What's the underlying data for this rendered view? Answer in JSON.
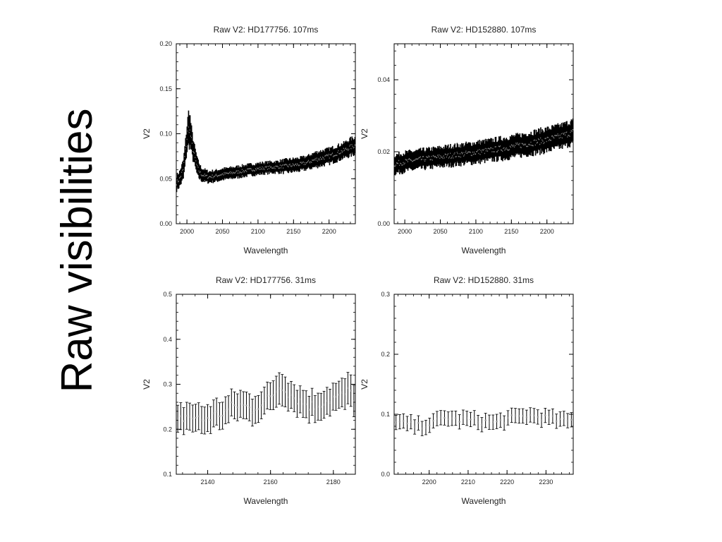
{
  "slide_title": "Raw visibilities",
  "chart_data": [
    {
      "type": "scatter",
      "title": "Raw V2: HD177756. 107ms",
      "xlabel": "Wavelength",
      "ylabel": "V2",
      "xlim": [
        1985,
        2237
      ],
      "ylim": [
        0.0,
        0.2
      ],
      "xticks": [
        2000,
        2050,
        2100,
        2150,
        2200
      ],
      "xtick_labels": [
        "2000",
        "2050",
        "2100",
        "2150",
        "2200"
      ],
      "yticks": [
        0.0,
        0.05,
        0.1,
        0.15,
        0.2
      ],
      "ytick_labels": [
        "0.00",
        "0.05",
        "0.10",
        "0.15",
        "0.20"
      ],
      "error_bars": true,
      "grid": false,
      "series": [
        {
          "x": [
            1985,
            1990,
            1995,
            1998,
            2001,
            2003,
            2005,
            2008,
            2011,
            2015,
            2020,
            2030,
            2040,
            2050,
            2060,
            2075,
            2090,
            2100,
            2110,
            2125,
            2140,
            2150,
            2160,
            2170,
            2180,
            2190,
            2200,
            2210,
            2220,
            2230,
            2237
          ],
          "y": [
            0.045,
            0.05,
            0.06,
            0.08,
            0.1,
            0.108,
            0.1,
            0.085,
            0.075,
            0.062,
            0.055,
            0.052,
            0.053,
            0.055,
            0.056,
            0.058,
            0.06,
            0.061,
            0.062,
            0.063,
            0.064,
            0.065,
            0.066,
            0.068,
            0.071,
            0.073,
            0.075,
            0.078,
            0.081,
            0.085,
            0.087
          ],
          "err": [
            0.008,
            0.008,
            0.01,
            0.012,
            0.015,
            0.02,
            0.015,
            0.012,
            0.01,
            0.009,
            0.007,
            0.006,
            0.006,
            0.006,
            0.006,
            0.006,
            0.006,
            0.006,
            0.006,
            0.006,
            0.007,
            0.007,
            0.007,
            0.007,
            0.008,
            0.008,
            0.008,
            0.008,
            0.008,
            0.009,
            0.009
          ]
        }
      ]
    },
    {
      "type": "scatter",
      "title": "Raw V2: HD152880. 107ms",
      "xlabel": "Wavelength",
      "ylabel": "V2",
      "xlim": [
        1985,
        2237
      ],
      "ylim": [
        0.0,
        0.05
      ],
      "xticks": [
        2000,
        2050,
        2100,
        2150,
        2200
      ],
      "xtick_labels": [
        "2000",
        "2050",
        "2100",
        "2150",
        "2200"
      ],
      "yticks": [
        0.0,
        0.02,
        0.04
      ],
      "ytick_labels": [
        "0.00",
        "0.02",
        "0.04"
      ],
      "error_bars": true,
      "grid": false,
      "series": [
        {
          "x": [
            1985,
            2000,
            2020,
            2040,
            2060,
            2080,
            2100,
            2120,
            2140,
            2160,
            2180,
            2200,
            2220,
            2237
          ],
          "y": [
            0.0165,
            0.0172,
            0.0178,
            0.0183,
            0.0188,
            0.0193,
            0.0198,
            0.0204,
            0.021,
            0.0217,
            0.0225,
            0.0233,
            0.0243,
            0.0255
          ],
          "err": [
            0.0025,
            0.0025,
            0.0025,
            0.0025,
            0.0026,
            0.0026,
            0.0027,
            0.0027,
            0.0028,
            0.0028,
            0.0029,
            0.003,
            0.003,
            0.0031
          ]
        }
      ]
    },
    {
      "type": "scatter",
      "title": "Raw V2: HD177756. 31ms",
      "xlabel": "Wavelength",
      "ylabel": "V2",
      "xlim": [
        2130,
        2187
      ],
      "ylim": [
        0.1,
        0.5
      ],
      "xticks": [
        2140,
        2160,
        2180
      ],
      "xtick_labels": [
        "2140",
        "2160",
        "2180"
      ],
      "yticks": [
        0.1,
        0.2,
        0.3,
        0.4,
        0.5
      ],
      "ytick_labels": [
        "0.1",
        "0.2",
        "0.3",
        "0.4",
        "0.5"
      ],
      "error_bars": true,
      "grid": false,
      "series": [
        {
          "x": [
            2130,
            2132,
            2134,
            2136,
            2138,
            2140,
            2142,
            2144,
            2146,
            2148,
            2150,
            2152,
            2154,
            2156,
            2158,
            2160,
            2162,
            2164,
            2166,
            2168,
            2170,
            2172,
            2174,
            2176,
            2178,
            2180,
            2182,
            2184,
            2186,
            2187
          ],
          "y": [
            0.21,
            0.225,
            0.23,
            0.225,
            0.22,
            0.225,
            0.23,
            0.235,
            0.24,
            0.25,
            0.255,
            0.25,
            0.245,
            0.255,
            0.26,
            0.27,
            0.29,
            0.3,
            0.28,
            0.27,
            0.26,
            0.255,
            0.25,
            0.26,
            0.265,
            0.27,
            0.27,
            0.28,
            0.28,
            0.27
          ],
          "err": [
            0.03,
            0.03,
            0.03,
            0.03,
            0.03,
            0.03,
            0.03,
            0.03,
            0.03,
            0.03,
            0.03,
            0.03,
            0.03,
            0.03,
            0.03,
            0.03,
            0.035,
            0.035,
            0.03,
            0.03,
            0.03,
            0.03,
            0.03,
            0.03,
            0.03,
            0.03,
            0.03,
            0.035,
            0.035,
            0.035
          ]
        }
      ]
    },
    {
      "type": "scatter",
      "title": "Raw V2: HD152880. 31ms",
      "xlabel": "Wavelength",
      "ylabel": "V2",
      "xlim": [
        2191,
        2237
      ],
      "ylim": [
        0.0,
        0.3
      ],
      "xticks": [
        2200,
        2210,
        2220,
        2230
      ],
      "xtick_labels": [
        "2200",
        "2210",
        "2220",
        "2230"
      ],
      "yticks": [
        0.0,
        0.1,
        0.2,
        0.3
      ],
      "ytick_labels": [
        "0.0",
        "0.1",
        "0.2",
        "0.3"
      ],
      "error_bars": true,
      "grid": false,
      "series": [
        {
          "x": [
            2191,
            2193,
            2195,
            2197,
            2199,
            2201,
            2203,
            2205,
            2207,
            2209,
            2211,
            2213,
            2215,
            2217,
            2219,
            2221,
            2223,
            2225,
            2227,
            2229,
            2231,
            2233,
            2235,
            2237
          ],
          "y": [
            0.085,
            0.085,
            0.083,
            0.08,
            0.082,
            0.085,
            0.092,
            0.095,
            0.09,
            0.092,
            0.09,
            0.088,
            0.087,
            0.085,
            0.09,
            0.093,
            0.095,
            0.098,
            0.097,
            0.095,
            0.093,
            0.09,
            0.088,
            0.09
          ],
          "err": [
            0.012,
            0.012,
            0.012,
            0.012,
            0.012,
            0.012,
            0.012,
            0.012,
            0.012,
            0.012,
            0.012,
            0.012,
            0.012,
            0.012,
            0.012,
            0.012,
            0.012,
            0.012,
            0.012,
            0.012,
            0.012,
            0.012,
            0.012,
            0.012
          ]
        }
      ]
    }
  ]
}
